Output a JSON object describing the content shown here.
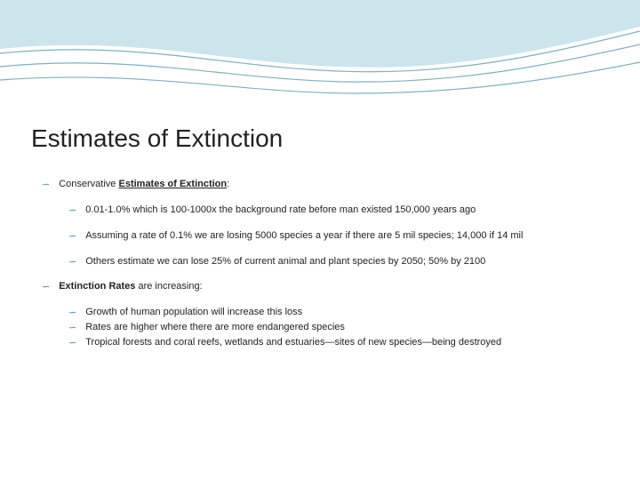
{
  "title": "Estimates of Extinction",
  "wave": {
    "fill": "#6eb5c9",
    "stroke": "#2d7a94",
    "background": "#ffffff"
  },
  "bullet_color": "#3c8ca8",
  "bullet_glyph": "∽",
  "items": [
    {
      "level": 1,
      "segments": [
        {
          "text": "Conservative ",
          "style": ""
        },
        {
          "text": "Estimates of Extinction",
          "style": "bold underline"
        },
        {
          "text": ":",
          "style": ""
        }
      ]
    },
    {
      "level": 2,
      "segments": [
        {
          "text": "0.01-1.0% which is 100-1000x the background rate before man existed 150,000 years ago",
          "style": ""
        }
      ]
    },
    {
      "level": 2,
      "segments": [
        {
          "text": "Assuming a rate of 0.1% we are losing 5000 species a year if there are 5 mil species; 14,000 if 14 mil",
          "style": ""
        }
      ]
    },
    {
      "level": 2,
      "segments": [
        {
          "text": "Others estimate we can lose 25% of current animal and plant species by 2050; 50% by 2100",
          "style": ""
        }
      ]
    },
    {
      "level": 1,
      "segments": [
        {
          "text": "Extinction Rates",
          "style": "bold"
        },
        {
          "text": " are increasing:",
          "style": ""
        }
      ]
    },
    {
      "level": 2,
      "tight": true,
      "segments": [
        {
          "text": "Growth of human population will increase this loss",
          "style": ""
        }
      ]
    },
    {
      "level": 2,
      "tight": true,
      "segments": [
        {
          "text": "Rates are higher where there are more endangered species",
          "style": ""
        }
      ]
    },
    {
      "level": 2,
      "tight": true,
      "segments": [
        {
          "text": "Tropical forests and coral reefs, wetlands and estuaries—sites of new species—being destroyed",
          "style": ""
        }
      ]
    }
  ]
}
